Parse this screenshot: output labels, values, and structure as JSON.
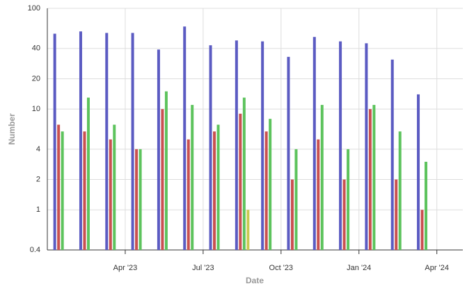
{
  "chart_data": {
    "type": "bar",
    "x_label": "Date",
    "y_label": "Number",
    "log_scale": true,
    "grid": true,
    "x": [
      "2023-01",
      "2023-02",
      "2023-03",
      "2023-04",
      "2023-05",
      "2023-06",
      "2023-07",
      "2023-08",
      "2023-09",
      "2023-10",
      "2023-11",
      "2023-12",
      "2024-01",
      "2024-02",
      "2024-03"
    ],
    "xlim": [
      "2023-01",
      "2024-05"
    ],
    "xticks": [
      {
        "value": "2023-04",
        "label": "Apr '23"
      },
      {
        "value": "2023-07",
        "label": "Jul '23"
      },
      {
        "value": "2023-10",
        "label": "Oct '23"
      },
      {
        "value": "2024-01",
        "label": "Jan '24"
      },
      {
        "value": "2024-04",
        "label": "Apr '24"
      }
    ],
    "ylim": [
      0.4,
      100
    ],
    "yticks": [
      0.4,
      1,
      2,
      4,
      10,
      20,
      40,
      100
    ],
    "series": [
      {
        "color": "#5b5bc2",
        "values": [
          56,
          59,
          57,
          57,
          39,
          66,
          43,
          48,
          47,
          33,
          52,
          47,
          45,
          31,
          14
        ]
      },
      {
        "color": "#c95050",
        "values": [
          7,
          6,
          5,
          4,
          10,
          5,
          6,
          9,
          6,
          2,
          5,
          2,
          10,
          2,
          1
        ]
      },
      {
        "color": "#5dc35d",
        "values": [
          6,
          13,
          7,
          4,
          15,
          11,
          7,
          13,
          8,
          4,
          11,
          4,
          11,
          6,
          3
        ]
      },
      {
        "color": "#c9c94f",
        "values": [
          null,
          null,
          null,
          null,
          null,
          null,
          null,
          1,
          null,
          null,
          null,
          null,
          null,
          null,
          null
        ]
      }
    ]
  }
}
